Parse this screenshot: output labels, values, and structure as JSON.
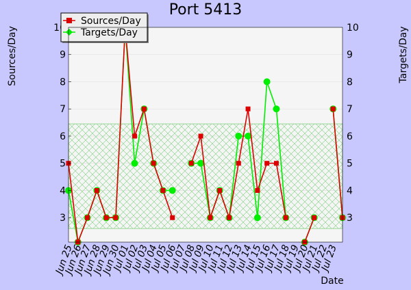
{
  "chart_data": {
    "type": "line",
    "title": "Port 5413",
    "xlabel": "Date",
    "ylabel_left": "Sources/Day",
    "ylabel_right": "Targets/Day",
    "ylim": [
      2.1,
      10
    ],
    "yticks": [
      3,
      4,
      5,
      6,
      7,
      8,
      9,
      10
    ],
    "legend_position": "top-left",
    "grid": true,
    "colors": {
      "sources": "#dd0000",
      "targets": "#00ee00",
      "plot_bg": "#f5f5f5",
      "page_bg": "#c8c8ff"
    },
    "x": [
      "Jun 25",
      "Jun 26",
      "Jun 27",
      "Jun 28",
      "Jun 29",
      "Jun 30",
      "Jul 01",
      "Jul 02",
      "Jul 03",
      "Jul 04",
      "Jul 05",
      "Jul 06",
      "Jul 07",
      "Jul 08",
      "Jul 09",
      "Jul 10",
      "Jul 11",
      "Jul 12",
      "Jul 13",
      "Jul 14",
      "Jul 15",
      "Jul 16",
      "Jul 17",
      "Jul 18",
      "Jul 19",
      "Jul 20",
      "Jul 21",
      "Jul 22",
      "Jul 23"
    ],
    "band": {
      "low": 2.6,
      "high": 6.45
    },
    "series": [
      {
        "name": "Sources/Day",
        "segments": [
          [
            0,
            5
          ],
          [
            1,
            2.1
          ],
          [
            2,
            3
          ],
          [
            3,
            4
          ],
          [
            4,
            3
          ],
          [
            5,
            3
          ],
          [
            6,
            10
          ],
          [
            7,
            6
          ],
          [
            8,
            7
          ],
          [
            9,
            5
          ],
          [
            10,
            4
          ],
          [
            11,
            3
          ]
        ],
        "segments2": [
          [
            13,
            5
          ],
          [
            14,
            6
          ],
          [
            15,
            3
          ],
          [
            16,
            4
          ],
          [
            17,
            3
          ],
          [
            18,
            5
          ],
          [
            19,
            7
          ],
          [
            20,
            4
          ],
          [
            21,
            5
          ],
          [
            22,
            5
          ],
          [
            23,
            3
          ]
        ],
        "segments3": [
          [
            25,
            2.1
          ],
          [
            26,
            3
          ]
        ],
        "segments4": [
          [
            28,
            7
          ],
          [
            29,
            3
          ]
        ]
      },
      {
        "name": "Targets/Day",
        "segments": [
          [
            0,
            4
          ],
          [
            1,
            2.1
          ],
          [
            2,
            3
          ],
          [
            3,
            4
          ],
          [
            4,
            3
          ],
          [
            5,
            3
          ],
          [
            6,
            10
          ],
          [
            7,
            5
          ],
          [
            8,
            7
          ],
          [
            9,
            5
          ],
          [
            10,
            4
          ],
          [
            11,
            4
          ]
        ],
        "segments2": [
          [
            13,
            5
          ],
          [
            14,
            5
          ],
          [
            15,
            3
          ],
          [
            16,
            4
          ],
          [
            17,
            3
          ],
          [
            18,
            6
          ],
          [
            19,
            6
          ],
          [
            20,
            3
          ],
          [
            21,
            8
          ],
          [
            22,
            7
          ],
          [
            23,
            3
          ]
        ],
        "segments3": [
          [
            25,
            2.1
          ],
          [
            26,
            3
          ]
        ],
        "segments4": [
          [
            28,
            7
          ],
          [
            29,
            3
          ]
        ]
      }
    ]
  },
  "legend": {
    "sources_label": "Sources/Day",
    "targets_label": "Targets/Day"
  }
}
